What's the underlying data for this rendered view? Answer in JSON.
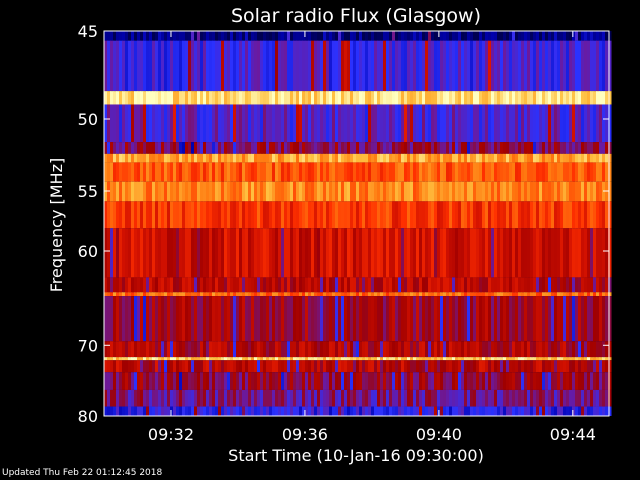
{
  "chart_data": {
    "type": "heatmap",
    "title": "Solar radio Flux (Glasgow)",
    "xlabel": "Start Time (10-Jan-16 09:30:00)",
    "ylabel": "Frequency [MHz]",
    "x_start": "09:30:00",
    "x_end": "09:45:05",
    "x_ticks": [
      "09:32",
      "09:36",
      "09:40",
      "09:44"
    ],
    "x_tick_minutes": [
      2,
      6,
      10,
      14
    ],
    "x_range_minutes": [
      0,
      15.08
    ],
    "y_ticks": [
      45,
      50,
      55,
      60,
      70,
      80
    ],
    "y_range_mhz": [
      45,
      80
    ],
    "y_scale": "inverse (frequency increases downward)",
    "colormap": [
      "#000050",
      "#0000b0",
      "#2a32ff",
      "#6a1aa0",
      "#a00000",
      "#d01000",
      "#ff3000",
      "#ff7a10",
      "#ffc040",
      "#ffffc0"
    ],
    "intensity_bands": [
      {
        "f_start": 45,
        "f_end": 45.5,
        "level": 0.05
      },
      {
        "f_start": 45.5,
        "f_end": 48.3,
        "level": 0.25
      },
      {
        "f_start": 48.3,
        "f_end": 49.1,
        "level": 0.95
      },
      {
        "f_start": 49.1,
        "f_end": 51.5,
        "level": 0.28
      },
      {
        "f_start": 51.5,
        "f_end": 52.3,
        "level": 0.4
      },
      {
        "f_start": 52.3,
        "f_end": 52.9,
        "level": 0.85
      },
      {
        "f_start": 52.9,
        "f_end": 54.3,
        "level": 0.72
      },
      {
        "f_start": 54.3,
        "f_end": 55.8,
        "level": 0.8
      },
      {
        "f_start": 55.8,
        "f_end": 58.0,
        "level": 0.66
      },
      {
        "f_start": 58.0,
        "f_end": 62.5,
        "level": 0.55
      },
      {
        "f_start": 62.5,
        "f_end": 64.0,
        "level": 0.5
      },
      {
        "f_start": 64.0,
        "f_end": 64.4,
        "level": 0.75
      },
      {
        "f_start": 64.4,
        "f_end": 69.5,
        "level": 0.45
      },
      {
        "f_start": 69.5,
        "f_end": 71.5,
        "level": 0.48
      },
      {
        "f_start": 71.5,
        "f_end": 71.9,
        "level": 0.92
      },
      {
        "f_start": 71.9,
        "f_end": 73.5,
        "level": 0.5
      },
      {
        "f_start": 73.5,
        "f_end": 76.0,
        "level": 0.42
      },
      {
        "f_start": 76.0,
        "f_end": 78.5,
        "level": 0.35
      },
      {
        "f_start": 78.5,
        "f_end": 80.0,
        "level": 0.22
      }
    ]
  },
  "footer_text": "Updated Thu Feb 22 01:12:45 2018"
}
